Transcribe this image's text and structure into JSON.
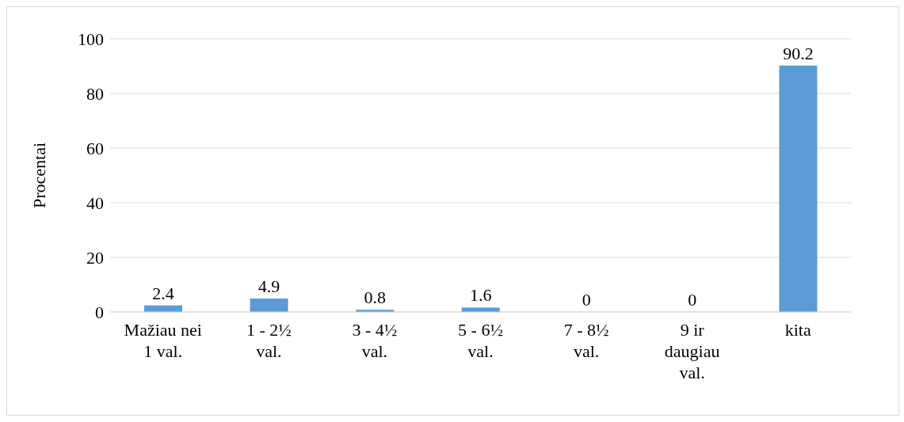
{
  "chart_data": {
    "type": "bar",
    "ylabel": "Procentai",
    "categories": [
      "Mažiau nei 1 val.",
      "1 - 2½ val.",
      "3 - 4½ val.",
      "5 - 6½ val.",
      "7 - 8½ val.",
      "9 ir daugiau val.",
      "kita"
    ],
    "values": [
      2.4,
      4.9,
      0.8,
      1.6,
      0,
      0,
      90.2
    ],
    "color": "#5b9bd5",
    "ylim": [
      0,
      100
    ],
    "yticks": [
      0,
      20,
      40,
      60,
      80,
      100
    ],
    "grid": "y",
    "data_labels": true,
    "legend": false
  }
}
